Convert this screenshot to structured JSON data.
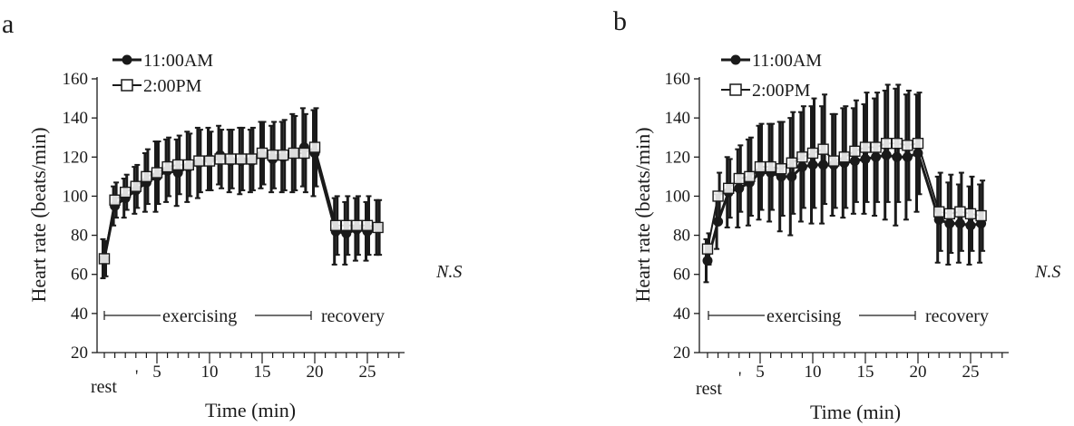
{
  "panels": [
    {
      "letter": "a",
      "legend": {
        "am_label": "11:00AM",
        "pm_label": "2:00PM"
      },
      "ns": "N.S",
      "labels": {
        "exercising": "exercising",
        "recovery": "recovery",
        "rest": "rest"
      },
      "xlabel": "Time (min)",
      "ylabel": "Heart rate (beats/min)"
    },
    {
      "letter": "b",
      "legend": {
        "am_label": "11:00AM",
        "pm_label": "2:00PM"
      },
      "ns": "N.S",
      "labels": {
        "exercising": "exercising",
        "recovery": "recovery",
        "rest": "rest"
      },
      "xlabel": "Time (min)",
      "ylabel": "Heart rate (beats/min)"
    }
  ],
  "chart_data": [
    {
      "type": "line",
      "title": "",
      "xlabel": "Time (min)",
      "ylabel": "Heart rate (beats/min)",
      "ylim": [
        20,
        160
      ],
      "xlim": [
        0,
        28
      ],
      "yticks": [
        20,
        40,
        60,
        80,
        100,
        120,
        140,
        160
      ],
      "xticks": [
        5,
        10,
        15,
        20,
        25
      ],
      "x": [
        0,
        1,
        2,
        3,
        4,
        5,
        6,
        7,
        8,
        9,
        10,
        11,
        12,
        13,
        14,
        15,
        16,
        17,
        18,
        19,
        20,
        22,
        23,
        24,
        25,
        26
      ],
      "series": [
        {
          "name": "11:00AM",
          "marker": "filled-circle",
          "values": [
            68,
            95,
            99,
            103,
            107,
            110,
            113,
            112,
            115,
            117,
            119,
            121,
            118,
            118,
            118,
            121,
            119,
            120,
            122,
            125,
            122,
            82,
            81,
            83,
            82,
            84
          ],
          "sd": [
            10,
            10,
            10,
            12,
            15,
            18,
            16,
            17,
            18,
            18,
            16,
            15,
            16,
            17,
            16,
            17,
            17,
            18,
            20,
            20,
            22,
            17,
            16,
            16,
            15,
            14
          ]
        },
        {
          "name": "2:00PM",
          "marker": "open-square",
          "values": [
            68,
            98,
            102,
            105,
            110,
            112,
            115,
            116,
            116,
            118,
            118,
            119,
            119,
            119,
            119,
            122,
            121,
            121,
            122,
            122,
            125,
            85,
            85,
            85,
            85,
            84
          ],
          "sd": [
            9,
            9,
            9,
            11,
            14,
            16,
            15,
            15,
            16,
            16,
            15,
            15,
            15,
            16,
            16,
            16,
            17,
            18,
            19,
            20,
            20,
            15,
            15,
            15,
            15,
            14
          ]
        }
      ],
      "annotations": [
        "exercising",
        "recovery",
        "rest",
        "N.S"
      ],
      "legend_position": "top-left"
    },
    {
      "type": "line",
      "title": "",
      "xlabel": "Time (min)",
      "ylabel": "Heart rate (beats/min)",
      "ylim": [
        20,
        160
      ],
      "xlim": [
        0,
        28
      ],
      "yticks": [
        20,
        40,
        60,
        80,
        100,
        120,
        140,
        160
      ],
      "xticks": [
        5,
        10,
        15,
        20,
        25
      ],
      "x": [
        0,
        1,
        2,
        3,
        4,
        5,
        6,
        7,
        8,
        9,
        10,
        11,
        12,
        13,
        14,
        15,
        16,
        17,
        18,
        19,
        20,
        22,
        23,
        24,
        25,
        26
      ],
      "series": [
        {
          "name": "11:00AM",
          "marker": "filled-circle",
          "values": [
            67,
            87,
            102,
            104,
            107,
            112,
            112,
            110,
            110,
            115,
            116,
            116,
            116,
            117,
            118,
            119,
            120,
            121,
            120,
            120,
            122,
            88,
            86,
            86,
            85,
            86
          ],
          "sd": [
            11,
            14,
            18,
            20,
            22,
            24,
            25,
            28,
            30,
            28,
            30,
            30,
            26,
            28,
            27,
            28,
            30,
            33,
            35,
            32,
            30,
            22,
            21,
            20,
            20,
            20
          ]
        },
        {
          "name": "2:00PM",
          "marker": "open-square",
          "values": [
            73,
            100,
            104,
            109,
            110,
            115,
            115,
            114,
            117,
            120,
            122,
            124,
            118,
            120,
            123,
            125,
            125,
            127,
            127,
            126,
            127,
            92,
            91,
            92,
            91,
            90
          ],
          "sd": [
            8,
            12,
            15,
            17,
            20,
            22,
            22,
            24,
            26,
            26,
            28,
            28,
            24,
            26,
            26,
            28,
            28,
            30,
            30,
            28,
            26,
            20,
            20,
            20,
            19,
            18
          ]
        }
      ],
      "annotations": [
        "exercising",
        "recovery",
        "rest",
        "N.S"
      ],
      "legend_position": "top-left"
    }
  ]
}
